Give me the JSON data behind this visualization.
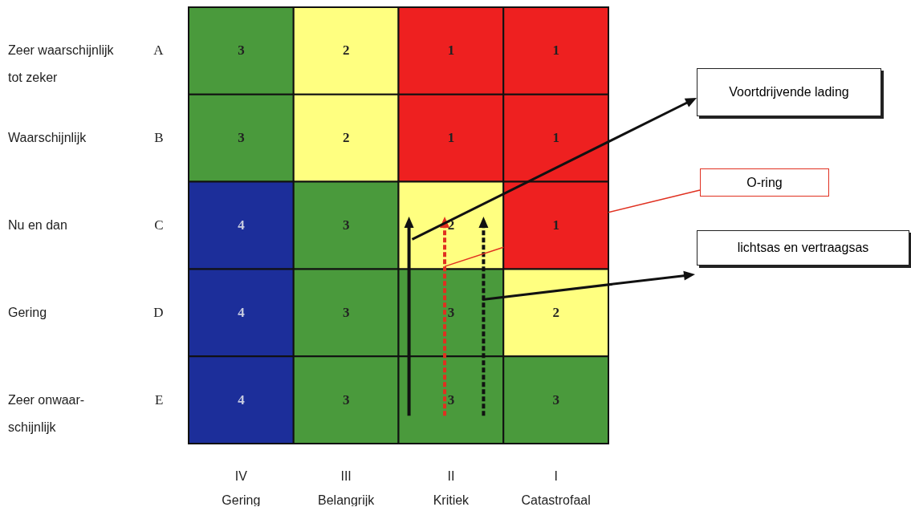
{
  "chart_data": {
    "type": "heatmap",
    "categories": [
      "IV\nGering",
      "III\nBelangrijk",
      "II\nKritiek",
      "I\nCatastrofaal"
    ],
    "y_categories": [
      "A",
      "B",
      "C",
      "D",
      "E"
    ],
    "y2_categories": [
      "Zeer waarschijnlijk\ntot zeker",
      "Waarschijnlijk",
      "Nu en dan",
      "Gering",
      "Zeer onwaar-\nschijnlijk"
    ],
    "cells": [
      [
        3,
        2,
        1,
        1
      ],
      [
        3,
        2,
        1,
        1
      ],
      [
        4,
        3,
        2,
        1
      ],
      [
        4,
        3,
        3,
        2
      ],
      [
        4,
        3,
        3,
        3
      ]
    ],
    "colors": [
      [
        "#4a9a3c",
        "#ffff80",
        "#ee2020",
        "#ee2020"
      ],
      [
        "#4a9a3c",
        "#ffff80",
        "#ee2020",
        "#ee2020"
      ],
      [
        "#1c2e9a",
        "#4a9a3c",
        "#ffff80",
        "#ee2020"
      ],
      [
        "#1c2e9a",
        "#4a9a3c",
        "#4a9a3c",
        "#ffff80"
      ],
      [
        "#1c2e9a",
        "#4a9a3c",
        "#4a9a3c",
        "#4a9a3c"
      ]
    ],
    "data_labels": true,
    "annotations": [
      "Voortdrijvende lading",
      "O-ring",
      "lichtsas en vertraagsas"
    ]
  }
}
